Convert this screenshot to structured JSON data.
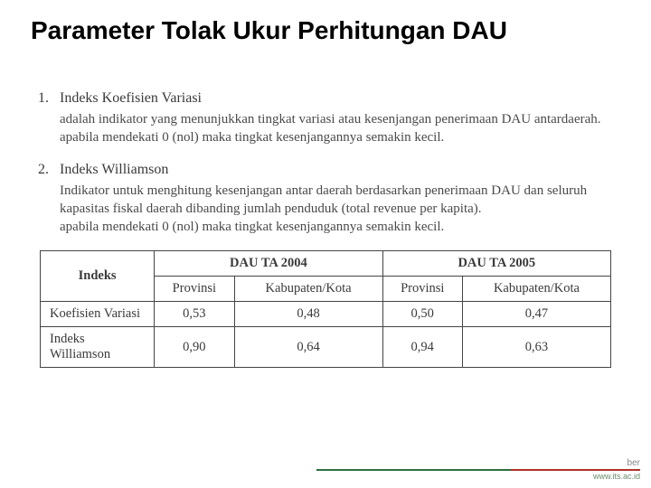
{
  "title": "Parameter Tolak Ukur Perhitungan DAU",
  "items": [
    {
      "num": "1.",
      "title": "Indeks Koefisien Variasi",
      "line1": "adalah indikator yang menunjukkan tingkat variasi atau kesenjangan penerimaan DAU antardaerah.",
      "line2": "apabila mendekati 0 (nol) maka tingkat kesenjangannya semakin kecil."
    },
    {
      "num": "2.",
      "title": "Indeks Williamson",
      "line1": "Indikator untuk menghitung kesenjangan antar daerah berdasarkan penerimaan DAU dan seluruh kapasitas fiskal daerah dibanding jumlah penduduk (total revenue per kapita).",
      "line2": "apabila mendekati 0 (nol) maka tingkat kesenjangannya semakin kecil."
    }
  ],
  "table": {
    "corner": "Indeks",
    "groups": [
      "DAU TA 2004",
      "DAU TA 2005"
    ],
    "subcols": [
      "Provinsi",
      "Kabupaten/Kota",
      "Provinsi",
      "Kabupaten/Kota"
    ],
    "rows": [
      {
        "label": "Koefisien Variasi",
        "values": [
          "0,53",
          "0,48",
          "0,50",
          "0,47"
        ]
      },
      {
        "label": "Indeks Williamson",
        "values": [
          "0,90",
          "0,64",
          "0,94",
          "0,63"
        ]
      }
    ],
    "col_widths": [
      "20%",
      "14%",
      "26%",
      "14%",
      "26%"
    ]
  },
  "footer": {
    "partial": "ber",
    "url": "www.its.ac.id"
  },
  "colors": {
    "title": "#000000",
    "body_text": "#3a3a3a",
    "border": "#444444",
    "background": "#ffffff"
  }
}
